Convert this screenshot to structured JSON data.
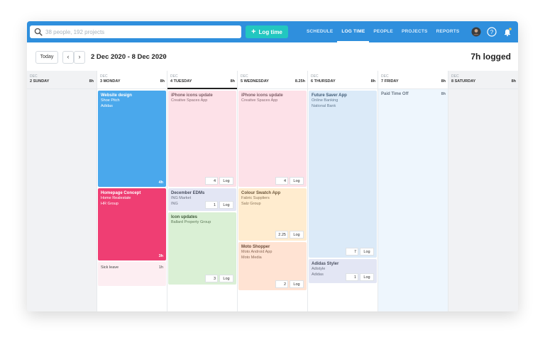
{
  "search": {
    "placeholder": "38 people, 192 projects"
  },
  "actions": {
    "log_time_label": "Log time"
  },
  "nav": {
    "items": [
      "SCHEDULE",
      "LOG TIME",
      "PEOPLE",
      "PROJECTS",
      "REPORTS"
    ],
    "active": "LOG TIME"
  },
  "icons": {
    "avatar": "avatar",
    "help": "help-icon",
    "notifications": "bell-icon"
  },
  "toolbar": {
    "today_label": "Today",
    "prev_label": "‹",
    "next_label": "›",
    "date_range": "2 Dec 2020 - 8 Dec 2020",
    "range_dropdown": "⌄",
    "logged_label": "7h logged"
  },
  "days": [
    {
      "month": "DEC",
      "name": "2 SUNDAY",
      "hours": "8h"
    },
    {
      "month": "DEC",
      "name": "3 MONDAY",
      "hours": "8h"
    },
    {
      "month": "DEC",
      "name": "4 TUESDAY",
      "hours": "8h"
    },
    {
      "month": "DEC",
      "name": "5 WEDNESDAY",
      "hours": "8.25h"
    },
    {
      "month": "DEC",
      "name": "6 THURSDAY",
      "hours": "8h"
    },
    {
      "month": "DEC",
      "name": "7 FRIDAY",
      "hours": "8h"
    },
    {
      "month": "DEC",
      "name": "8 SATURDAY",
      "hours": "8h"
    }
  ],
  "cards": {
    "mon1": {
      "title": "Website design",
      "line1": "Shoe Pitch",
      "line2": "Adidas",
      "hours": "4h"
    },
    "mon2": {
      "title": "Homepage Concept",
      "line1": "Home Realestate",
      "line2": "HR Group",
      "hours": "3h"
    },
    "mon3": {
      "title": "Sick leave",
      "hours": "1h"
    },
    "tue1": {
      "title": "iPhone icons update",
      "line1": "Creative Spaces App",
      "value": "4",
      "log": "Log"
    },
    "tue2": {
      "title": "December EDMs",
      "line1": "ING Market",
      "line2": "ING",
      "value": "1",
      "log": "Log"
    },
    "tue3": {
      "title": "Icon updates",
      "line1": "Ballard Property Group",
      "value": "3",
      "log": "Log"
    },
    "wed1": {
      "title": "iPhone icons update",
      "line1": "Creative Spaces App",
      "value": "4",
      "log": "Log"
    },
    "wed2": {
      "title": "Colour Swatch App",
      "line1": "Fabric Suppliers",
      "line2": "Salz Group",
      "value": "2.25",
      "log": "Log"
    },
    "wed3": {
      "title": "Moto Shopper",
      "line1": "Moto Android App",
      "line2": "Moto Media",
      "value": "2",
      "log": "Log"
    },
    "thu1": {
      "title": "Future Saver App",
      "line1": "Online Banking",
      "line2": "National Bank",
      "value": "7",
      "log": "Log"
    },
    "thu2": {
      "title": "Adidas Styler",
      "line1": "Adistyle",
      "line2": "Adidas",
      "value": "1",
      "log": "Log"
    },
    "fri1": {
      "title": "Paid Time Off",
      "hours": "8h"
    }
  },
  "colors": {
    "topbar": "#2f8fdd",
    "accent": "#22c7c0",
    "blue": "#4aa8ec",
    "pink": "#ef3e73",
    "lightpink": "#fde1e8",
    "lavender": "#e3e6f4",
    "green": "#daf0d5",
    "peach": "#ffeccf",
    "salmon": "#ffe3d3",
    "lightblue": "#dbeaf8"
  }
}
